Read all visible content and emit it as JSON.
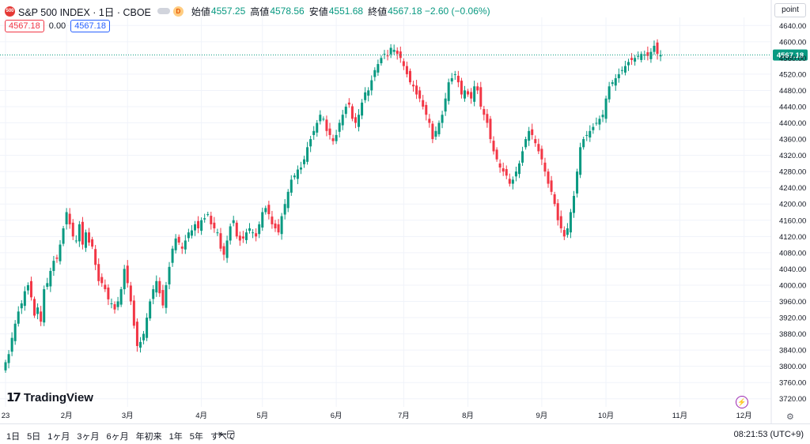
{
  "header": {
    "symbol_badge": "500",
    "title": "S&P 500 INDEX · 1日 · CBOE",
    "d_badge": "D",
    "ohlc": [
      {
        "label": "始値",
        "value": "4557.25"
      },
      {
        "label": "高値",
        "value": "4578.56"
      },
      {
        "label": "安値",
        "value": "4551.68"
      },
      {
        "label": "終値",
        "value": "4567.18 −2.60 (−0.06%)"
      }
    ],
    "sell_price": "4567.18",
    "spread": "0.00",
    "buy_price": "4567.18"
  },
  "price_unit": "point",
  "last_price_label": "4567.18",
  "logo_text": "TradingView",
  "bottom": {
    "ranges": [
      "1日",
      "5日",
      "1ヶ月",
      "3ヶ月",
      "6ヶ月",
      "年初来",
      "1年",
      "5年",
      "すべて"
    ],
    "time": "08:21:53 (UTC+9)"
  },
  "icons": {
    "calendar": "calendar-icon",
    "lightning": "lightning-icon",
    "settings": "gear-icon"
  },
  "colors": {
    "up": "#089981",
    "down": "#f23645",
    "last_line": "#089981",
    "badge": "#e53935"
  },
  "chart_data": {
    "type": "candlestick",
    "symbol": "S&P 500 INDEX",
    "interval": "1日",
    "ylim": [
      3700,
      4660
    ],
    "yticks": [
      3720,
      3760,
      3800,
      3840,
      3880,
      3920,
      3960,
      4000,
      4040,
      4080,
      4120,
      4160,
      4200,
      4240,
      4280,
      4320,
      4360,
      4400,
      4440,
      4480,
      4520,
      4560,
      4600,
      4640
    ],
    "x_range": [
      0,
      236
    ],
    "xticks": [
      {
        "label": "23",
        "x": 0
      },
      {
        "label": "2月",
        "x": 19
      },
      {
        "label": "3月",
        "x": 38
      },
      {
        "label": "4月",
        "x": 61
      },
      {
        "label": "5月",
        "x": 80
      },
      {
        "label": "6月",
        "x": 103
      },
      {
        "label": "7月",
        "x": 124
      },
      {
        "label": "8月",
        "x": 144
      },
      {
        "label": "9月",
        "x": 167
      },
      {
        "label": "10月",
        "x": 187
      },
      {
        "label": "11月",
        "x": 210
      },
      {
        "label": "12月",
        "x": 230
      }
    ],
    "last_price": 4567.18,
    "closes": [
      3810,
      3830,
      3870,
      3905,
      3935,
      3955,
      3985,
      4000,
      3970,
      3925,
      3945,
      3910,
      3990,
      4005,
      4035,
      4060,
      4065,
      4100,
      4140,
      4180,
      4150,
      4120,
      4110,
      4150,
      4100,
      4130,
      4105,
      4095,
      4050,
      4010,
      4005,
      3990,
      3965,
      3955,
      3940,
      3960,
      3990,
      4040,
      4005,
      3960,
      3900,
      3850,
      3860,
      3880,
      3920,
      3960,
      3990,
      4010,
      3980,
      3950,
      4000,
      4045,
      4090,
      4115,
      4105,
      4090,
      4110,
      4130,
      4135,
      4150,
      4140,
      4160,
      4165,
      4175,
      4150,
      4140,
      4130,
      4090,
      4075,
      4110,
      4145,
      4160,
      4120,
      4110,
      4115,
      4130,
      4140,
      4130,
      4120,
      4150,
      4180,
      4190,
      4175,
      4150,
      4140,
      4130,
      4170,
      4200,
      4230,
      4260,
      4270,
      4285,
      4290,
      4310,
      4340,
      4360,
      4380,
      4400,
      4420,
      4410,
      4380,
      4370,
      4355,
      4370,
      4400,
      4420,
      4440,
      4445,
      4410,
      4400,
      4420,
      4450,
      4475,
      4480,
      4505,
      4530,
      4545,
      4560,
      4570,
      4565,
      4585,
      4580,
      4570,
      4560,
      4540,
      4520,
      4500,
      4490,
      4470,
      4460,
      4440,
      4420,
      4400,
      4360,
      4380,
      4400,
      4420,
      4460,
      4500,
      4510,
      4520,
      4500,
      4470,
      4480,
      4470,
      4460,
      4490,
      4480,
      4440,
      4420,
      4400,
      4360,
      4330,
      4310,
      4290,
      4280,
      4270,
      4250,
      4260,
      4280,
      4300,
      4330,
      4360,
      4380,
      4370,
      4350,
      4330,
      4310,
      4280,
      4250,
      4230,
      4200,
      4160,
      4140,
      4120,
      4140,
      4180,
      4220,
      4280,
      4340,
      4360,
      4370,
      4380,
      4390,
      4400,
      4410,
      4420,
      4460,
      4490,
      4500,
      4510,
      4520,
      4530,
      4540,
      4550,
      4555,
      4560,
      4565,
      4570,
      4568,
      4565,
      4575,
      4590,
      4570,
      4567.18
    ]
  }
}
